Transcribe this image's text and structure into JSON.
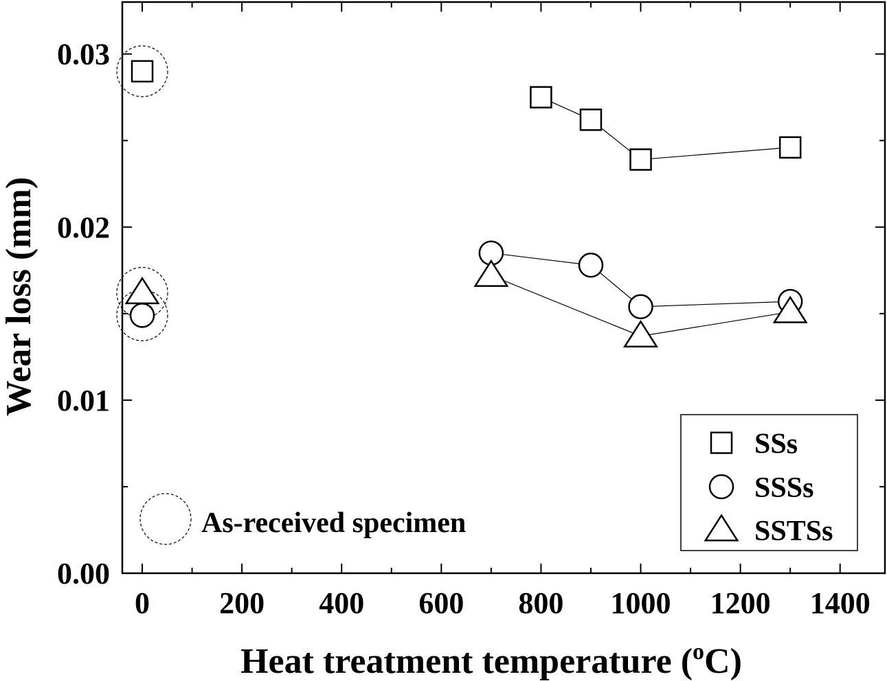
{
  "chart_data": {
    "type": "scatter",
    "xlabel": "Heat treatment temperature (",
    "xlabel_unit_sup": "o",
    "xlabel_unit_tail": "C)",
    "ylabel": "Wear loss (mm)",
    "xlim": [
      -40,
      1490
    ],
    "ylim": [
      0.0,
      0.033
    ],
    "xticks": [
      0,
      200,
      400,
      600,
      800,
      1000,
      1200,
      1400
    ],
    "yticks": [
      0.0,
      0.01,
      0.02,
      0.03
    ],
    "xtick_labels": [
      "0",
      "200",
      "400",
      "600",
      "800",
      "1000",
      "1200",
      "1400"
    ],
    "ytick_labels": [
      "0.00",
      "0.01",
      "0.02",
      "0.03"
    ],
    "grid": false,
    "legend_position": "bottom-right",
    "series": [
      {
        "name": "SSs",
        "marker": "square",
        "as_received": {
          "x": 0,
          "y": 0.029
        },
        "x": [
          800,
          900,
          1000,
          1300
        ],
        "y": [
          0.0275,
          0.0262,
          0.0239,
          0.0246
        ]
      },
      {
        "name": "SSSs",
        "marker": "circle",
        "as_received": {
          "x": 0,
          "y": 0.0149
        },
        "x": [
          700,
          900,
          1000,
          1300
        ],
        "y": [
          0.0185,
          0.0178,
          0.0154,
          0.0157
        ]
      },
      {
        "name": "SSTSs",
        "marker": "triangle",
        "as_received": {
          "x": 0,
          "y": 0.0162
        },
        "x": [
          700,
          1000,
          1300
        ],
        "y": [
          0.0172,
          0.0137,
          0.0151
        ]
      }
    ],
    "annotation": {
      "text": "As-received specimen",
      "marker": "dashed-circle"
    },
    "colors": {
      "line": "#000000",
      "background": "#ffffff"
    }
  }
}
